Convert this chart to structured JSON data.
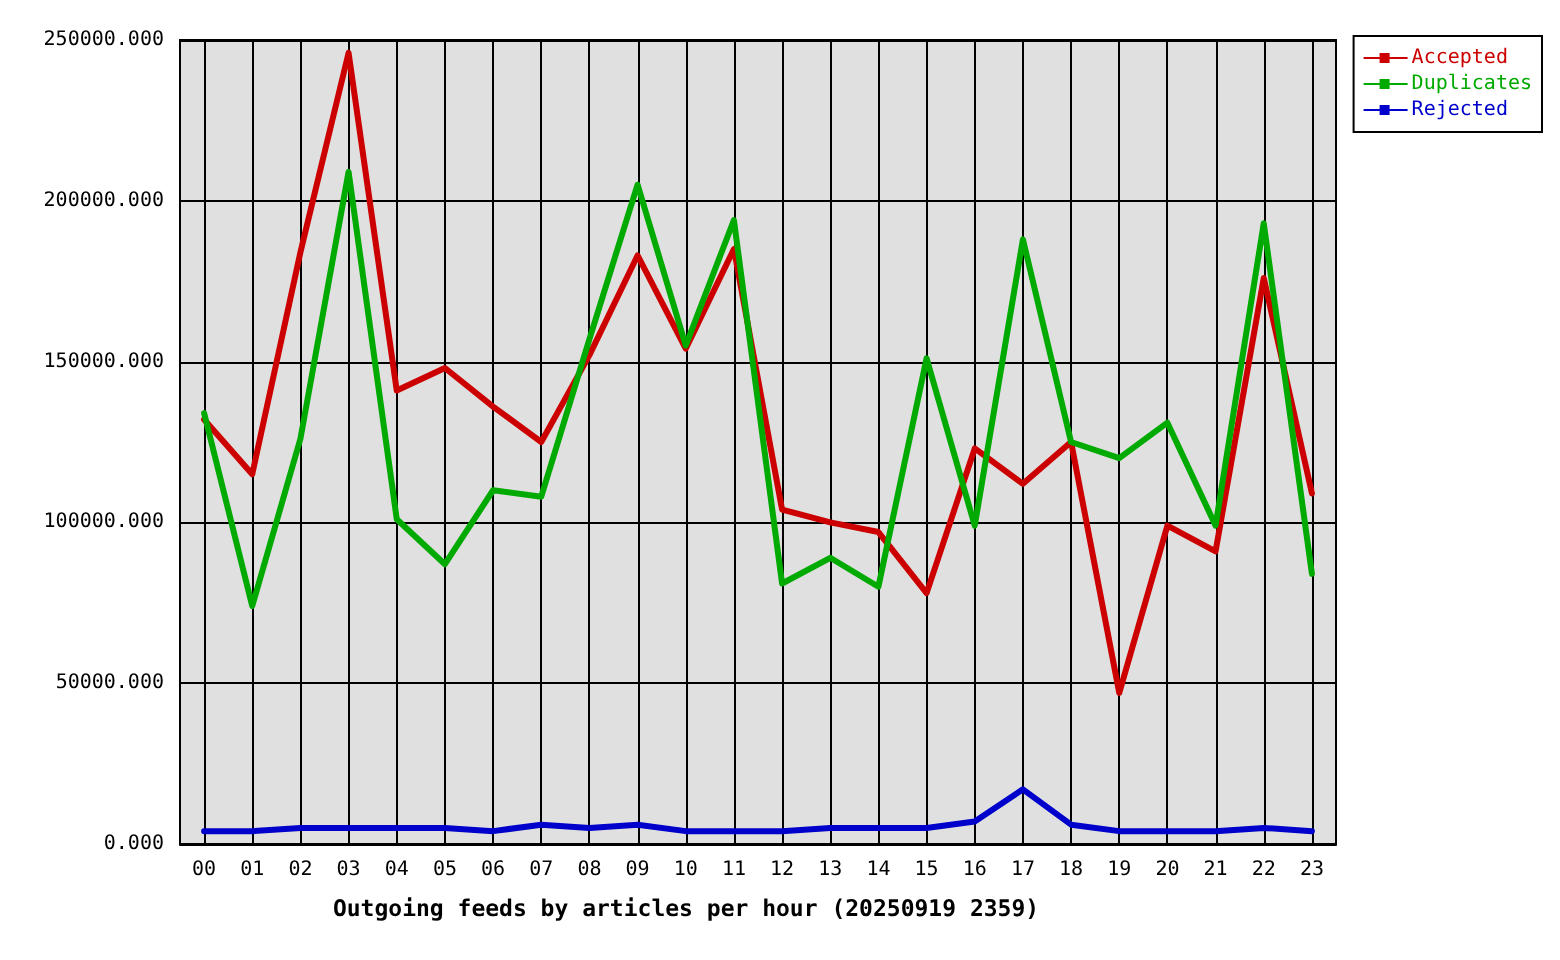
{
  "chart_data": {
    "type": "line",
    "xlabel": "Outgoing feeds by articles per hour (20250919 2359)",
    "categories": [
      "00",
      "01",
      "02",
      "03",
      "04",
      "05",
      "06",
      "07",
      "08",
      "09",
      "10",
      "11",
      "12",
      "13",
      "14",
      "15",
      "16",
      "17",
      "18",
      "19",
      "20",
      "21",
      "22",
      "23"
    ],
    "series": [
      {
        "name": "Accepted",
        "color": "#cc0000",
        "values": [
          132000,
          115000,
          184000,
          246000,
          141000,
          148000,
          136000,
          125000,
          152000,
          183000,
          154000,
          185000,
          104000,
          100000,
          97000,
          78000,
          123000,
          112000,
          125000,
          47000,
          99000,
          91000,
          176000,
          109000
        ]
      },
      {
        "name": "Duplicates",
        "color": "#00aa00",
        "values": [
          134000,
          74000,
          126000,
          209000,
          101000,
          87000,
          110000,
          108000,
          157000,
          205000,
          155000,
          194000,
          81000,
          89000,
          80000,
          151000,
          99000,
          188000,
          125000,
          120000,
          131000,
          99000,
          193000,
          84000
        ]
      },
      {
        "name": "Rejected",
        "color": "#0000cc",
        "values": [
          4000,
          4000,
          5000,
          5000,
          5000,
          5000,
          4000,
          6000,
          5000,
          6000,
          4000,
          4000,
          4000,
          5000,
          5000,
          5000,
          7000,
          17000,
          6000,
          4000,
          4000,
          4000,
          5000,
          4000
        ]
      }
    ],
    "ylim": [
      0,
      250000
    ],
    "yticks": [
      {
        "value": 0,
        "label": "0.000"
      },
      {
        "value": 50000,
        "label": "50000.000"
      },
      {
        "value": 100000,
        "label": "100000.000"
      },
      {
        "value": 150000,
        "label": "150000.000"
      },
      {
        "value": 200000,
        "label": "200000.000"
      },
      {
        "value": 250000,
        "label": "250000.000"
      }
    ],
    "grid": true,
    "legend": "top right",
    "marker": "none",
    "line_style": "solid"
  }
}
